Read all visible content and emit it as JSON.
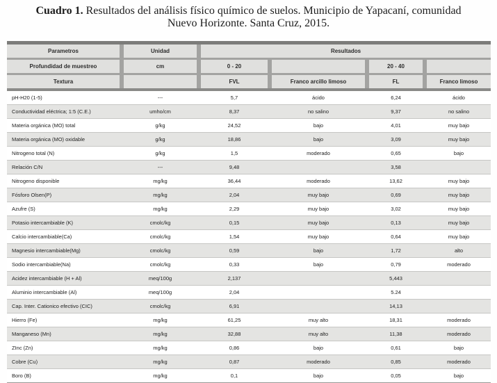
{
  "caption": {
    "label": "Cuadro 1.",
    "line1_rest": "Resultados del análisis físico químico de suelos. Municipio de Yapacaní, comunidad",
    "line2": "Nuevo Horizonte. Santa Cruz, 2015."
  },
  "colors": {
    "header_fill": "#e0e0de",
    "separator": "#a3a3a1",
    "row_alt_fill": "#e4e4e2",
    "border_dark": "#7c7c7a"
  },
  "header": {
    "parametros": "Parametros",
    "unidad": "Unidad",
    "resultados": "Resultados",
    "profundidad_label": "Profundidad de muestreo",
    "profundidad_unit": "cm",
    "depth1": "0 - 20",
    "depth2": "20 - 40",
    "textura_label": "Textura",
    "textura1": "FVL",
    "textura2": "Franco arcillo limoso",
    "textura3": "FL",
    "textura4": "Franco limoso"
  },
  "rows": [
    {
      "param": "pH-H20 (1-5)",
      "unit": "---",
      "v1": "5,7",
      "c1": "ácido",
      "v2": "6,24",
      "c2": "ácido"
    },
    {
      "param": "Conductividad eléctrica; 1:5 (C.E.)",
      "unit": "umho/cm",
      "v1": "8,37",
      "c1": "no salino",
      "v2": "9,37",
      "c2": "no salino"
    },
    {
      "param": "Materia orgánica (MO) total",
      "unit": "g/kg",
      "v1": "24,52",
      "c1": "bajo",
      "v2": "4,01",
      "c2": "muy bajo"
    },
    {
      "param": "Materia orgánica (MO) oxidable",
      "unit": "g/kg",
      "v1": "18,86",
      "c1": "bajo",
      "v2": "3,09",
      "c2": "muy bajo"
    },
    {
      "param": "Nitrogeno total (N)",
      "unit": "g/kg",
      "v1": "1,5",
      "c1": "moderado",
      "v2": "0,65",
      "c2": "bajo"
    },
    {
      "param": "Relación C/N",
      "unit": "---",
      "v1": "9,48",
      "c1": "",
      "v2": "3,58",
      "c2": ""
    },
    {
      "param": "Nitrogeno disponible",
      "unit": "mg/kg",
      "v1": "36,44",
      "c1": "moderado",
      "v2": "13,62",
      "c2": "muy bajo"
    },
    {
      "param": "Fósforo Olsen(P)",
      "unit": "mg/kg",
      "v1": "2,04",
      "c1": "muy bajo",
      "v2": "0,69",
      "c2": "muy bajo"
    },
    {
      "param": "Azufre (S)",
      "unit": "mg/kg",
      "v1": "2,29",
      "c1": "muy bajo",
      "v2": "3,02",
      "c2": "muy bajo"
    },
    {
      "param": "Potasio intercambiable (K)",
      "unit": "cmolc/kg",
      "v1": "0,15",
      "c1": "muy bajo",
      "v2": "0,13",
      "c2": "muy bajo"
    },
    {
      "param": "Calcio intercambiable(Ca)",
      "unit": "cmolc/kg",
      "v1": "1,54",
      "c1": "muy bajo",
      "v2": "0,64",
      "c2": "muy bajo"
    },
    {
      "param": "Magnesio intercambiable(Mg)",
      "unit": "cmolc/kg",
      "v1": "0,59",
      "c1": "bajo",
      "v2": "1,72",
      "c2": "alto"
    },
    {
      "param": "Sodio intercambiable(Na)",
      "unit": "cmolc/kg",
      "v1": "0,33",
      "c1": "bajo",
      "v2": "0,79",
      "c2": "moderado"
    },
    {
      "param": "Acidez intercambiable (H + Al)",
      "unit": "meq/100g",
      "v1": "2,137",
      "c1": "",
      "v2": "5,443",
      "c2": ""
    },
    {
      "param": "Aluminio intercambiable (Al)",
      "unit": "meq/100g",
      "v1": "2,04",
      "c1": "",
      "v2": "5.24",
      "c2": ""
    },
    {
      "param": "Cap. Inter. Cationico efectivo (CIC)",
      "unit": "cmolc/kg",
      "v1": "6,91",
      "c1": "",
      "v2": "14,13",
      "c2": ""
    },
    {
      "param": "Hierro (Fe)",
      "unit": "mg/kg",
      "v1": "61,25",
      "c1": "muy alto",
      "v2": "18,31",
      "c2": "moderado"
    },
    {
      "param": "Manganeso (Mn)",
      "unit": "mg/kg",
      "v1": "32,88",
      "c1": "muy alto",
      "v2": "11,38",
      "c2": "moderado"
    },
    {
      "param": "ZInc (Zn)",
      "unit": "mg/kg",
      "v1": "0,86",
      "c1": "bajo",
      "v2": "0,61",
      "c2": "bajo"
    },
    {
      "param": "Cobre (Cu)",
      "unit": "mg/kg",
      "v1": "0,87",
      "c1": "moderado",
      "v2": "0,85",
      "c2": "moderado"
    },
    {
      "param": "Boro (B)",
      "unit": "mg/kg",
      "v1": "0,1",
      "c1": "bajo",
      "v2": "0,05",
      "c2": "bajo"
    }
  ]
}
